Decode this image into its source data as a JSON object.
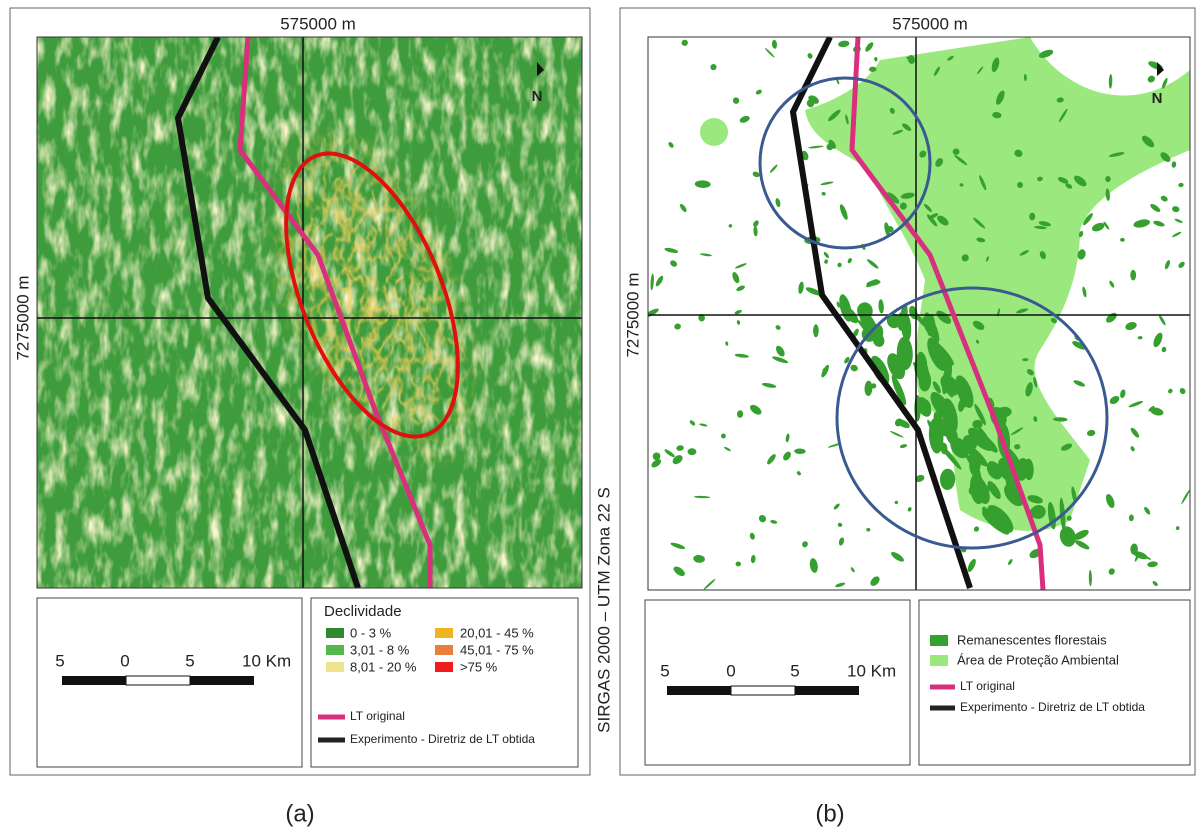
{
  "panels": [
    {
      "map": {
        "easting_label": "575000 m",
        "northing_label": "7275000 m",
        "north": "N"
      },
      "scale": {
        "labels": [
          "5",
          "0",
          "5",
          "10 Km"
        ]
      },
      "legend": {
        "title": "Declividade",
        "classes": [
          "0 - 3 %",
          "3,01 - 8 %",
          "8,01 - 20 %",
          "20,01 - 45 %",
          "45,01 - 75 %",
          ">75 %"
        ],
        "lines": [
          "LT original",
          "Experimento - Diretriz de LT obtida"
        ]
      },
      "caption": "(a)"
    },
    {
      "map": {
        "easting_label": "575000 m",
        "northing_label": "7275000 m",
        "north": "N"
      },
      "scale": {
        "labels": [
          "5",
          "0",
          "5",
          "10 Km"
        ]
      },
      "legend": {
        "classes": [
          "Remanescentes florestais",
          "Área de Proteção Ambiental"
        ],
        "lines": [
          "LT original",
          "Experimento - Diretriz de LT obtida"
        ]
      },
      "caption": "(b)"
    }
  ],
  "crs_label": "SIRGAS 2000 – UTM Zona 22 S"
}
